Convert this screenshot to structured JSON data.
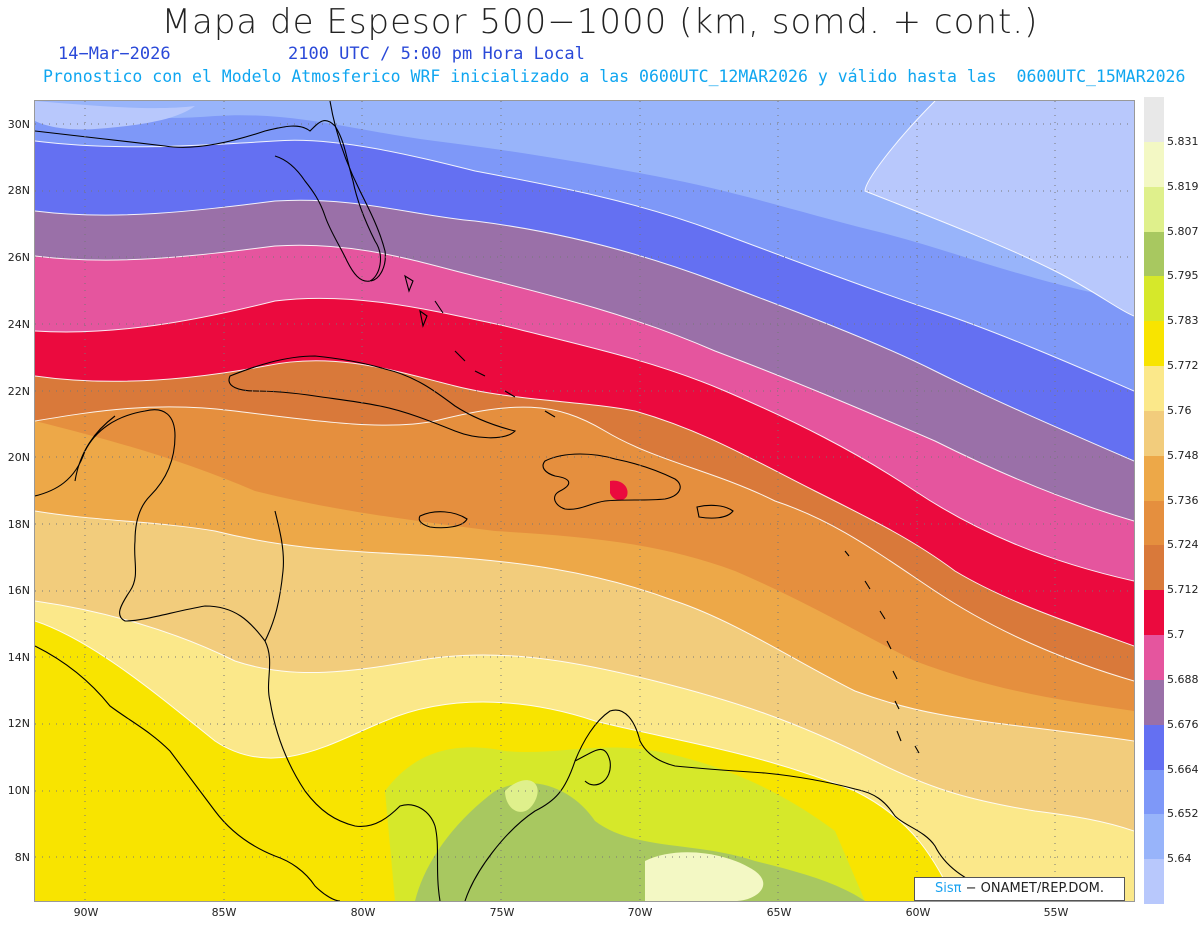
{
  "header": {
    "title": "Mapa de Espesor 500−1000 (km, somd. + cont.)",
    "date": "14−Mar−2026",
    "time": "2100 UTC / 5:00 pm Hora Local",
    "subtitle": "Pronostico con el Modelo Atmosferico WRF inicializado a las 0600UTC_12MAR2026 y válido hasta las  0600UTC_15MAR2026"
  },
  "map": {
    "lat_labels": [
      "30N",
      "28N",
      "26N",
      "24N",
      "22N",
      "20N",
      "18N",
      "16N",
      "14N",
      "12N",
      "10N",
      "8N"
    ],
    "lon_labels": [
      "90W",
      "85W",
      "80W",
      "75W",
      "70W",
      "65W",
      "60W",
      "55W"
    ],
    "grid": "dotted"
  },
  "legend": {
    "levels": [
      {
        "label": "5.831",
        "color": "#e8e8e8"
      },
      {
        "label": "5.819",
        "color": "#f3f8c4"
      },
      {
        "label": "5.807",
        "color": "#dff08c"
      },
      {
        "label": "5.795",
        "color": "#a8c860"
      },
      {
        "label": "5.783",
        "color": "#d6e82a"
      },
      {
        "label": "5.772",
        "color": "#f8e400"
      },
      {
        "label": "5.76",
        "color": "#fbe88a"
      },
      {
        "label": "5.748",
        "color": "#f2cc7c"
      },
      {
        "label": "5.736",
        "color": "#eda848"
      },
      {
        "label": "5.724",
        "color": "#e58f3e"
      },
      {
        "label": "5.712",
        "color": "#d9793a"
      },
      {
        "label": "5.7",
        "color": "#eb0a3e"
      },
      {
        "label": "5.688",
        "color": "#e5559e"
      },
      {
        "label": "5.676",
        "color": "#9a70a8"
      },
      {
        "label": "5.664",
        "color": "#6470f2"
      },
      {
        "label": "5.652",
        "color": "#7e98f8"
      },
      {
        "label": "5.64",
        "color": "#98b4fa"
      },
      {
        "label": "",
        "color": "#b8c8fc"
      }
    ]
  },
  "credit": {
    "brand": "Sisπ",
    "text": " − ONAMET/REP.DOM."
  }
}
